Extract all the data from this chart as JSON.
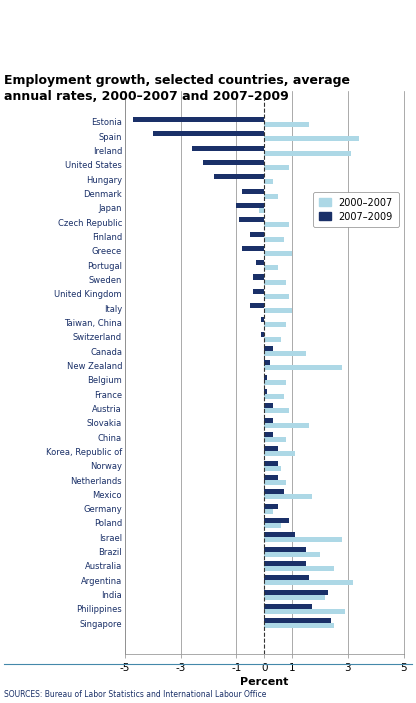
{
  "title": "Employment growth, selected countries, average\nannual rates, 2000–2007 and 2007–2009",
  "xlabel": "Percent",
  "source": "SOURCES: Bureau of Labor Statistics and International Labour Office",
  "xlim": [
    -5,
    5
  ],
  "xticks": [
    -5,
    -3,
    -1,
    0,
    1,
    3,
    5
  ],
  "color_2000": "#add8e6",
  "color_2007": "#1a3068",
  "legend_labels": [
    "2000–2007",
    "2007–2009"
  ],
  "countries": [
    "Estonia",
    "Spain",
    "Ireland",
    "United States",
    "Hungary",
    "Denmark",
    "Japan",
    "Czech Republic",
    "Finland",
    "Greece",
    "Portugal",
    "Sweden",
    "United Kingdom",
    "Italy",
    "Taiwan, China",
    "Switzerland",
    "Canada",
    "New Zealand",
    "Belgium",
    "France",
    "Austria",
    "Slovakia",
    "China",
    "Korea, Republic of",
    "Norway",
    "Netherlands",
    "Mexico",
    "Germany",
    "Poland",
    "Israel",
    "Brazil",
    "Australia",
    "Argentina",
    "India",
    "Philippines",
    "Singapore"
  ],
  "values_2000_2007": [
    1.6,
    3.4,
    3.1,
    0.9,
    0.3,
    0.5,
    -0.2,
    0.9,
    0.7,
    1.0,
    0.5,
    0.8,
    0.9,
    1.0,
    0.8,
    0.6,
    1.5,
    2.8,
    0.8,
    0.7,
    0.9,
    1.6,
    0.8,
    1.1,
    0.6,
    0.8,
    1.7,
    0.3,
    0.6,
    2.8,
    2.0,
    2.5,
    3.2,
    2.2,
    2.9,
    2.5
  ],
  "values_2007_2009": [
    -4.7,
    -4.0,
    -2.6,
    -2.2,
    -1.8,
    -0.8,
    -1.0,
    -0.9,
    -0.5,
    -0.8,
    -0.3,
    -0.4,
    -0.4,
    -0.5,
    -0.1,
    -0.1,
    0.3,
    0.2,
    0.1,
    0.1,
    0.3,
    0.3,
    0.3,
    0.5,
    0.5,
    0.5,
    0.7,
    0.5,
    0.9,
    1.1,
    1.5,
    1.5,
    1.6,
    2.3,
    1.7,
    2.4
  ]
}
